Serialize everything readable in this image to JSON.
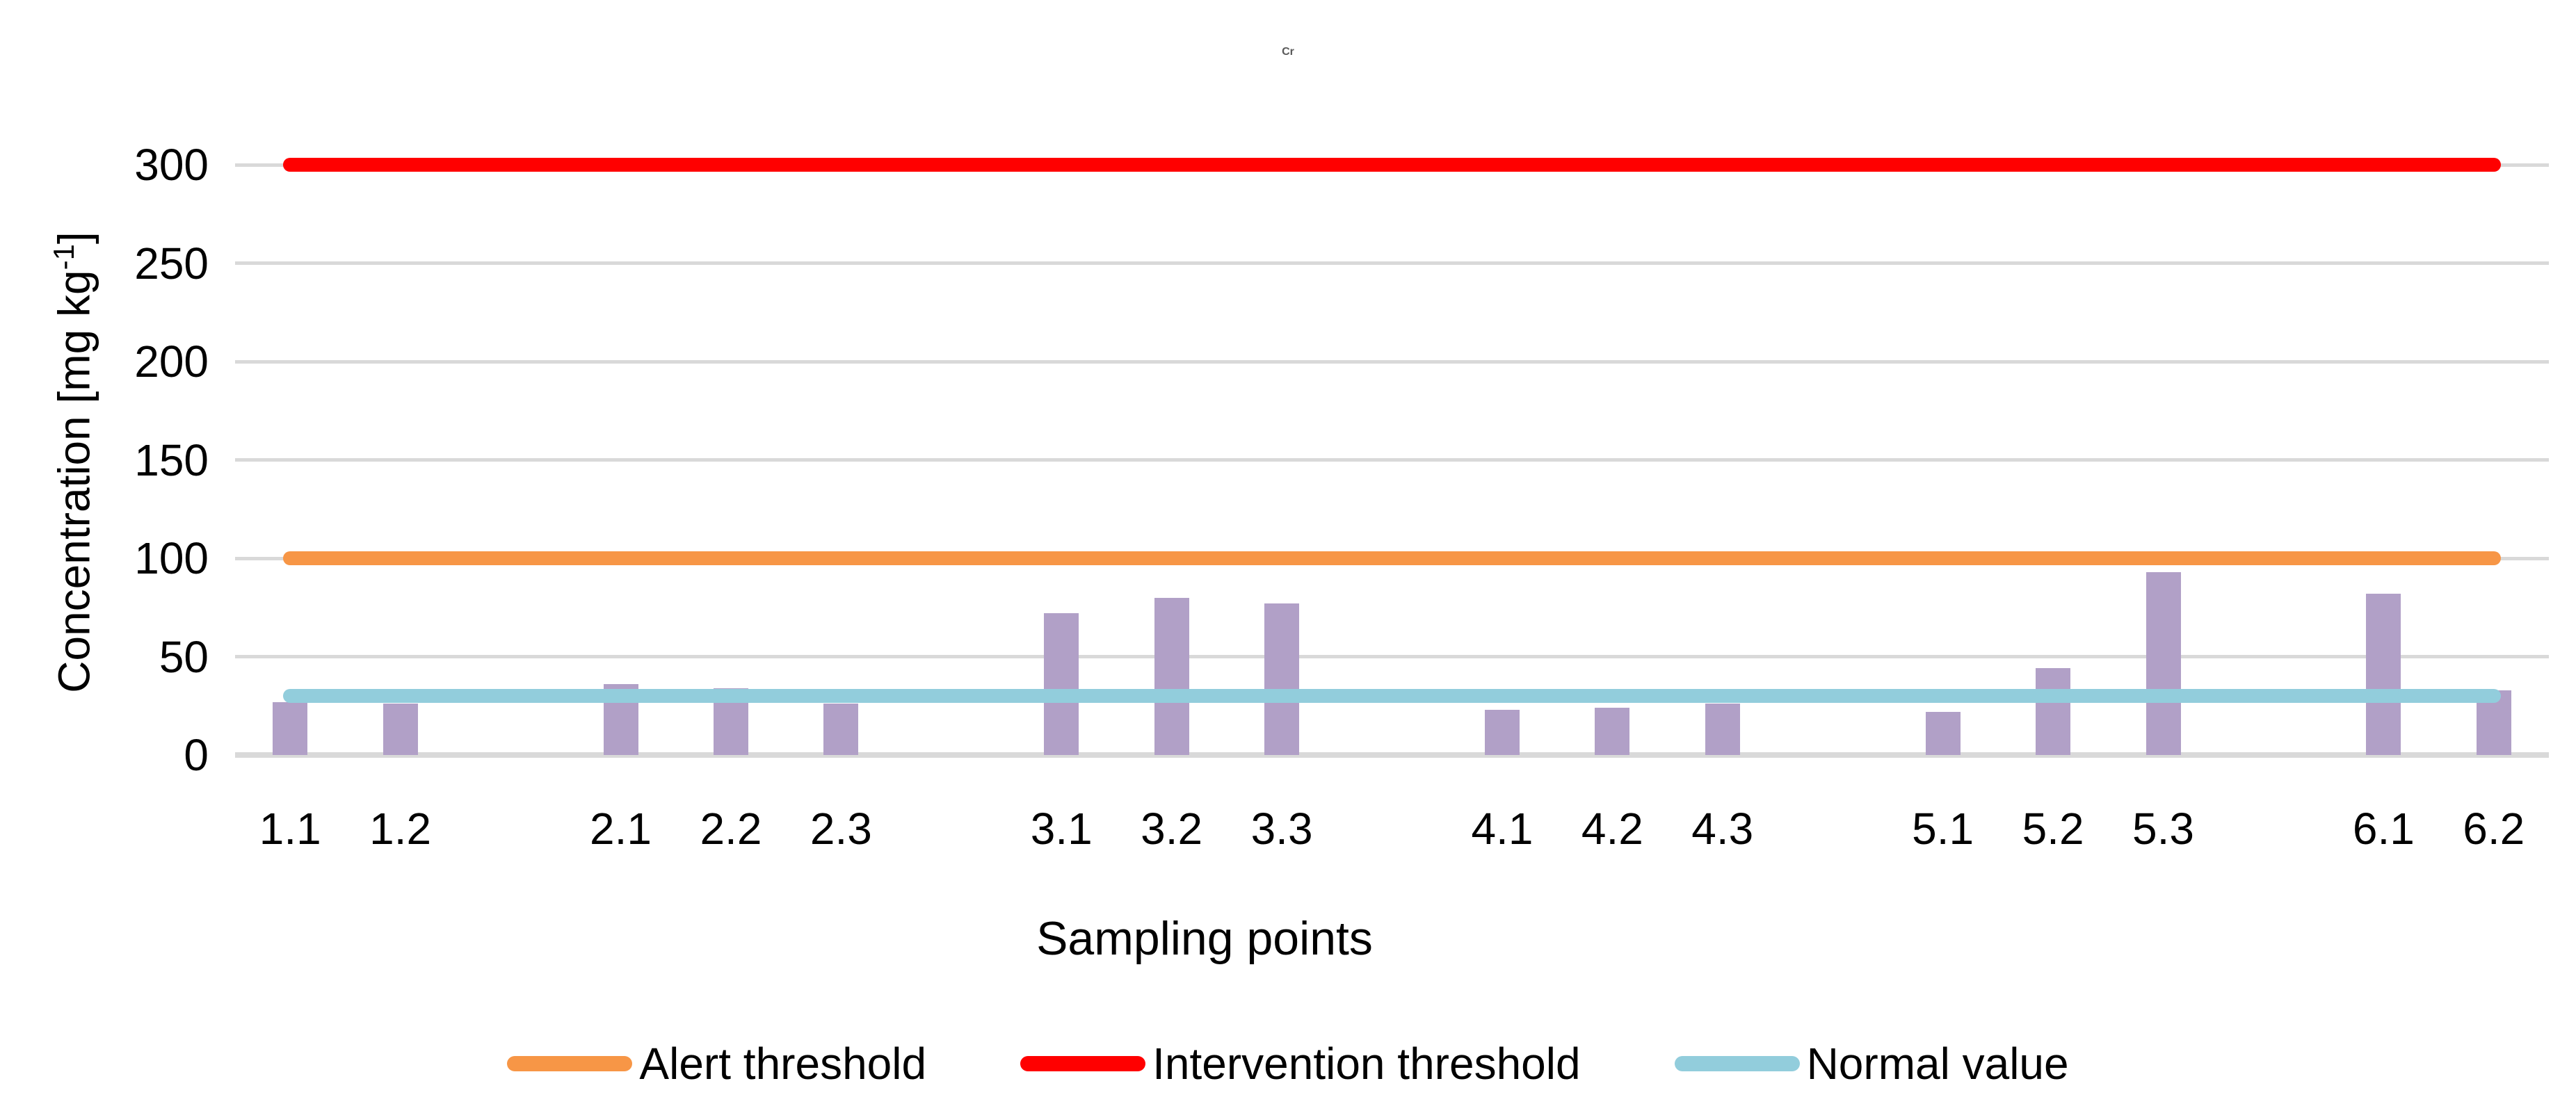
{
  "chart_data": {
    "type": "bar",
    "title": "Cr",
    "title_color": "#595959",
    "xlabel": "Sampling points",
    "ylabel": "Concentration [mg kg-1]",
    "ylabel_prefix": "Concentration [mg kg",
    "ylabel_sup": "-1",
    "ylabel_suffix": "]",
    "ylim": [
      0,
      300
    ],
    "yticks": [
      0,
      50,
      100,
      150,
      200,
      250,
      300
    ],
    "grid": true,
    "gridline_color": "#D9D9D9",
    "categories": [
      "1.1",
      "1.2",
      "2.1",
      "2.2",
      "2.3",
      "3.1",
      "3.2",
      "3.3",
      "4.1",
      "4.2",
      "4.3",
      "5.1",
      "5.2",
      "5.3",
      "6.1",
      "6.2"
    ],
    "values": [
      27,
      26,
      36,
      34,
      26,
      72,
      80,
      77,
      23,
      24,
      26,
      22,
      44,
      93,
      82,
      33
    ],
    "bar_color": "#B1A0C7",
    "category_slots": [
      0,
      1,
      3,
      4,
      5,
      7,
      8,
      9,
      11,
      12,
      13,
      15,
      16,
      17,
      19,
      20
    ],
    "total_slots": 21,
    "series_lines": [
      {
        "name": "Alert threshold",
        "value": 100,
        "color": "#F79646"
      },
      {
        "name": "Intervention threshold",
        "value": 300,
        "color": "#FF0000"
      },
      {
        "name": "Normal value",
        "value": 30,
        "color": "#92CDDC"
      }
    ],
    "legend": [
      "Alert threshold",
      "Intervention threshold",
      "Normal value"
    ],
    "legend_position": "bottom"
  }
}
